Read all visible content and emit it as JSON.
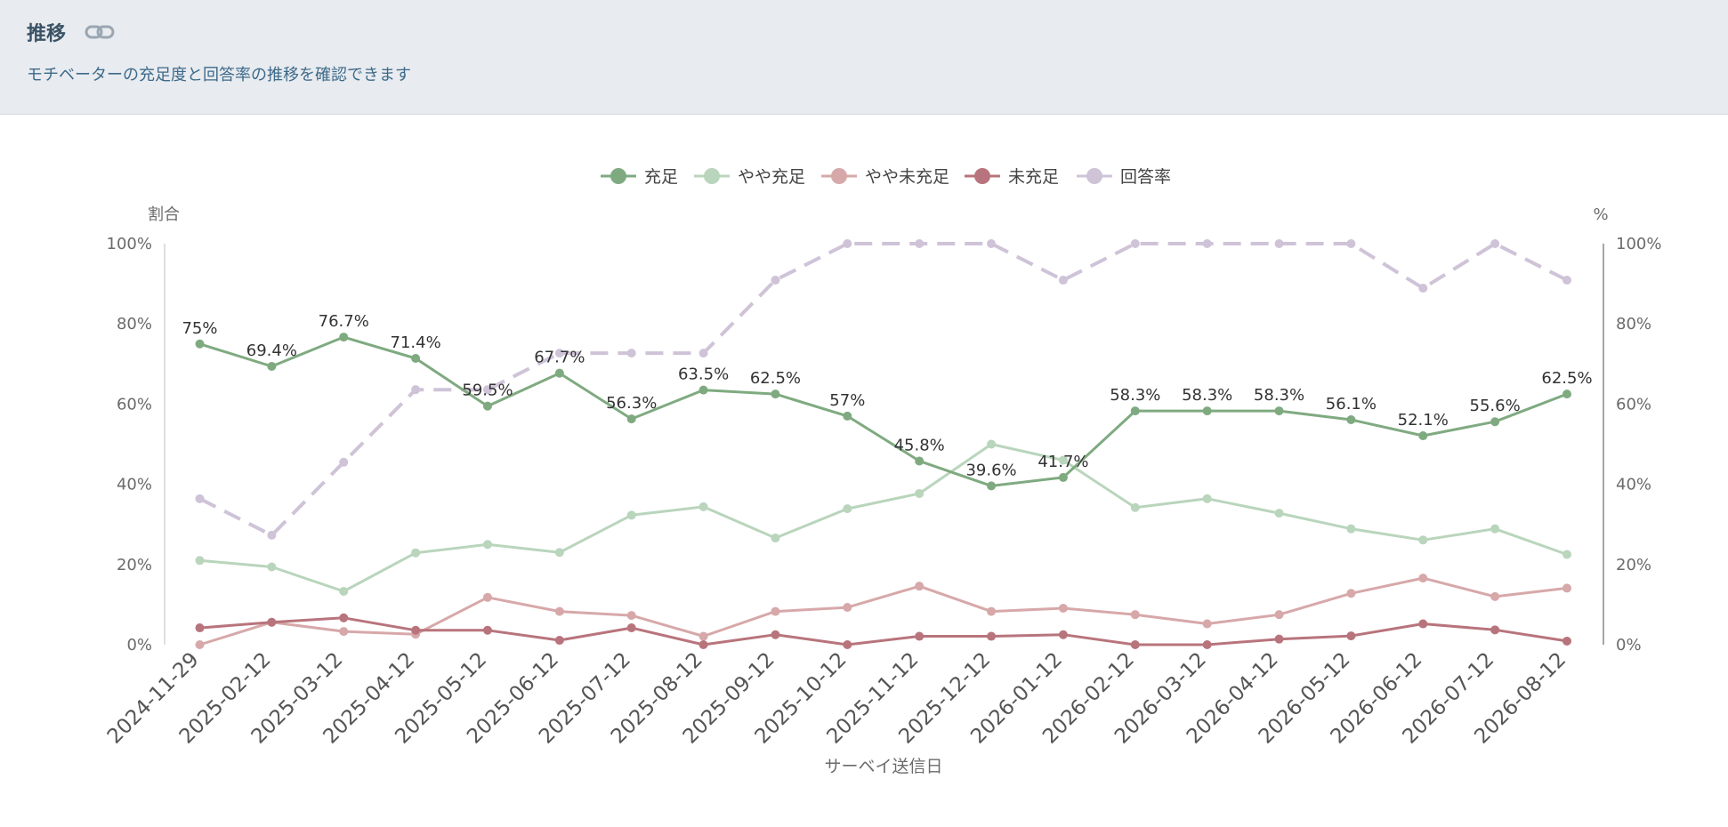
{
  "header": {
    "title": "推移",
    "subtitle": "モチベーターの充足度と回答率の推移を確認できます",
    "link_icon": "link-icon"
  },
  "chart_data": {
    "type": "line",
    "x": [
      "2024-11-29",
      "2025-02-12",
      "2025-03-12",
      "2025-04-12",
      "2025-05-12",
      "2025-06-12",
      "2025-07-12",
      "2025-08-12",
      "2025-09-12",
      "2025-10-12",
      "2025-11-12",
      "2025-12-12",
      "2026-01-12",
      "2026-02-12",
      "2026-03-12",
      "2026-04-12",
      "2026-05-12",
      "2026-06-12",
      "2026-07-12",
      "2026-08-12"
    ],
    "xlabel": "サーベイ送信日",
    "ylabel_left": "割合",
    "ylabel_right": "%",
    "ylim": [
      0,
      100
    ],
    "yticks": [
      "0%",
      "20%",
      "40%",
      "60%",
      "80%",
      "100%"
    ],
    "legend_position": "top-center",
    "series": [
      {
        "name": "充足",
        "color": "#7faa80",
        "dashed": false,
        "show_labels": true,
        "values": [
          75,
          69.4,
          76.7,
          71.4,
          59.5,
          67.7,
          56.3,
          63.5,
          62.5,
          57,
          45.8,
          39.6,
          41.7,
          58.3,
          58.3,
          58.3,
          56.1,
          52.1,
          55.6,
          62.5
        ],
        "labels": [
          "75%",
          "69.4%",
          "76.7%",
          "71.4%",
          "59.5%",
          "67.7%",
          "56.3%",
          "63.5%",
          "62.5%",
          "57%",
          "45.8%",
          "39.6%",
          "41.7%",
          "58.3%",
          "58.3%",
          "58.3%",
          "56.1%",
          "52.1%",
          "55.6%",
          "62.5%"
        ]
      },
      {
        "name": "やや充足",
        "color": "#b9d5bc",
        "dashed": false,
        "show_labels": false,
        "values": [
          21,
          19.4,
          13.3,
          22.9,
          25,
          23,
          32.3,
          34.4,
          26.6,
          33.9,
          37.7,
          50,
          46,
          34.2,
          36.4,
          32.8,
          28.9,
          26.1,
          28.9,
          22.5
        ]
      },
      {
        "name": "やや未充足",
        "color": "#d7a8a9",
        "dashed": false,
        "show_labels": false,
        "values": [
          0,
          5.6,
          3.3,
          2.6,
          11.8,
          8.3,
          7.3,
          2.1,
          8.3,
          9.3,
          14.6,
          8.3,
          9.1,
          7.5,
          5.2,
          7.5,
          12.8,
          16.6,
          12,
          14.1
        ]
      },
      {
        "name": "未充足",
        "color": "#b8747c",
        "dashed": false,
        "show_labels": false,
        "values": [
          4.2,
          5.6,
          6.7,
          3.6,
          3.6,
          1.1,
          4.2,
          0,
          2.5,
          0,
          2.1,
          2.1,
          2.5,
          0,
          0,
          1.4,
          2.2,
          5.2,
          3.7,
          0.9
        ]
      },
      {
        "name": "回答率",
        "color": "#cfc3d8",
        "dashed": true,
        "show_labels": false,
        "values": [
          36.4,
          27.3,
          45.5,
          63.6,
          63.6,
          72.7,
          72.7,
          72.7,
          90.9,
          100,
          100,
          100,
          90.9,
          100,
          100,
          100,
          100,
          88.9,
          100,
          90.9
        ]
      }
    ]
  }
}
